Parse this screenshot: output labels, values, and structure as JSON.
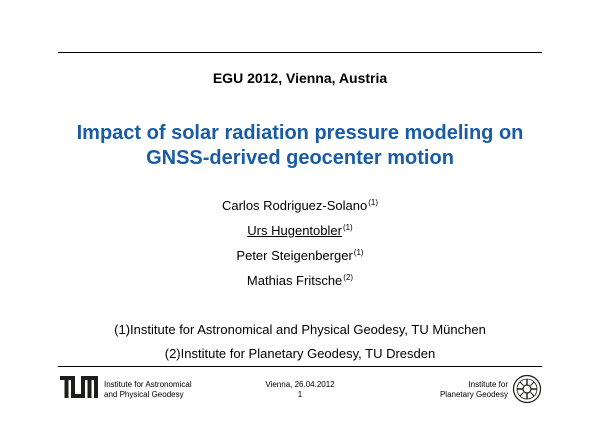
{
  "header": {
    "conference": "EGU 2012, Vienna, Austria"
  },
  "title": {
    "line1": "Impact of solar radiation pressure modeling on",
    "line2": "GNSS-derived geocenter motion"
  },
  "authors": [
    {
      "name": "Carlos Rodriguez-Solano",
      "affil": "(1)"
    },
    {
      "name": "Urs Hugentobler",
      "affil": "(1)"
    },
    {
      "name": "Peter Steigenberger",
      "affil": "(1)"
    },
    {
      "name": "Mathias Fritsche",
      "affil": "(2)"
    }
  ],
  "affiliations": [
    "(1)Institute for Astronomical and Physical Geodesy, TU München",
    "(2)Institute for Planetary Geodesy, TU Dresden"
  ],
  "footer": {
    "left_line1": "Institute for Astronomical",
    "left_line2": "and Physical Geodesy",
    "center_line1": "Vienna, 26.04.2012",
    "center_line2": "1",
    "right_line1": "Institute for",
    "right_line2": "Planetary Geodesy"
  },
  "colors": {
    "title": "#1a5ba6",
    "logo": "#1d1d1b"
  },
  "icons": {
    "left_logo": "tum-logo-icon",
    "right_logo": "tu-dresden-seal-icon"
  }
}
